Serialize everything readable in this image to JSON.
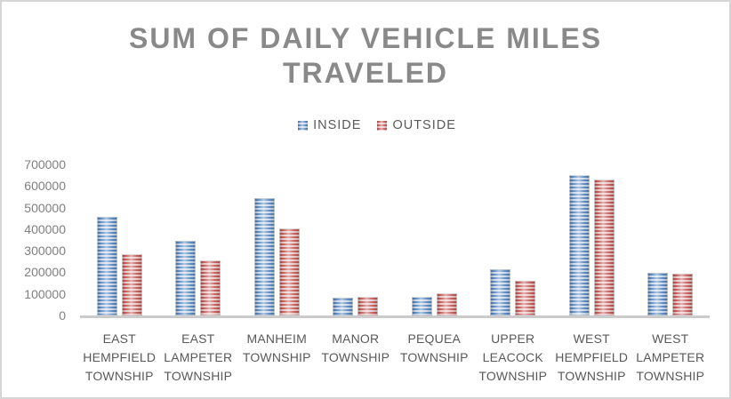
{
  "chart_data": {
    "type": "bar",
    "title": "SUM OF DAILY VEHICLE MILES TRAVELED",
    "categories": [
      "EAST HEMPFIELD TOWNSHIP",
      "EAST LAMPETER TOWNSHIP",
      "MANHEIM TOWNSHIP",
      "MANOR TOWNSHIP",
      "PEQUEA TOWNSHIP",
      "UPPER LEACOCK TOWNSHIP",
      "WEST HEMPFIELD TOWNSHIP",
      "WEST LAMPETER TOWNSHIP"
    ],
    "series": [
      {
        "name": "INSIDE",
        "color": "#4f81bd",
        "values": [
          455000,
          347000,
          545000,
          82000,
          86000,
          215000,
          652000,
          197000
        ]
      },
      {
        "name": "OUTSIDE",
        "color": "#c0504d",
        "values": [
          283000,
          257000,
          405000,
          88000,
          104000,
          160000,
          628000,
          193000
        ]
      }
    ],
    "xlabel": "",
    "ylabel": "",
    "ylim": [
      0,
      700000
    ],
    "yticks": [
      0,
      100000,
      200000,
      300000,
      400000,
      500000,
      600000,
      700000
    ],
    "grid": false,
    "legend_position": "top",
    "title_color": "#898989",
    "axis_text_color": "#595959",
    "tick_text_color": "#7f7f7f"
  }
}
